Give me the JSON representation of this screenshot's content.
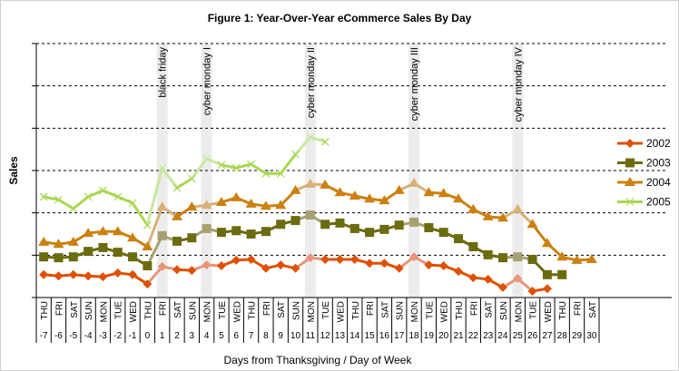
{
  "chart_data": {
    "type": "line",
    "title": "Figure 1: Year-Over-Year eCommerce Sales By Day",
    "xlabel": "Days from Thanksgiving / Day of Week",
    "ylabel": "Sales",
    "ylim": [
      0,
      6
    ],
    "grid": true,
    "legend_position": "right",
    "x": [
      -7,
      -6,
      -5,
      -4,
      -3,
      -2,
      -1,
      0,
      1,
      2,
      3,
      4,
      5,
      6,
      7,
      8,
      9,
      10,
      11,
      12,
      13,
      14,
      15,
      16,
      17,
      18,
      19,
      20,
      21,
      22,
      23,
      24,
      25,
      26,
      27,
      28,
      29,
      30
    ],
    "day_of_week": [
      "THU",
      "FRI",
      "SAT",
      "SUN",
      "MON",
      "TUE",
      "WED",
      "THU",
      "FRI",
      "SAT",
      "SUN",
      "MON",
      "TUE",
      "WED",
      "THU",
      "FRI",
      "SAT",
      "SUN",
      "MON",
      "TUE",
      "WED",
      "THU",
      "FRI",
      "SAT",
      "SUN",
      "MON",
      "TUE",
      "WED",
      "THU",
      "FRI",
      "SAT",
      "SUN",
      "MON",
      "TUE",
      "WED",
      "THU",
      "FRI",
      "SAT"
    ],
    "annotations": [
      {
        "x": 1,
        "label": "black friday"
      },
      {
        "x": 4,
        "label": "cyber monday I"
      },
      {
        "x": 11,
        "label": "cyber monday II"
      },
      {
        "x": 18,
        "label": "cyber monday III"
      },
      {
        "x": 25,
        "label": "cyber monday IV"
      }
    ],
    "series": [
      {
        "name": "2002",
        "color": "#E05000",
        "highlight": "#E8957A",
        "marker": "diamond",
        "values": [
          0.54,
          0.51,
          0.54,
          0.51,
          0.49,
          0.58,
          0.54,
          0.32,
          0.73,
          0.66,
          0.64,
          0.77,
          0.75,
          0.88,
          0.9,
          0.69,
          0.77,
          0.69,
          0.94,
          0.9,
          0.9,
          0.9,
          0.81,
          0.81,
          0.69,
          0.96,
          0.77,
          0.75,
          0.62,
          0.47,
          0.43,
          0.24,
          0.45,
          0.15,
          0.21,
          null,
          null,
          null
        ]
      },
      {
        "name": "2003",
        "color": "#6B6B10",
        "highlight": "#A8A070",
        "marker": "square",
        "values": [
          0.96,
          0.94,
          0.96,
          1.09,
          1.18,
          1.07,
          0.96,
          0.75,
          1.46,
          1.33,
          1.41,
          1.63,
          1.54,
          1.58,
          1.5,
          1.56,
          1.73,
          1.82,
          1.95,
          1.73,
          1.76,
          1.63,
          1.54,
          1.61,
          1.71,
          1.78,
          1.65,
          1.54,
          1.39,
          1.2,
          1.01,
          0.94,
          0.96,
          0.9,
          0.54,
          0.54,
          null,
          null
        ]
      },
      {
        "name": "2004",
        "color": "#CC8010",
        "highlight": "#D8B078",
        "marker": "triangle",
        "values": [
          1.31,
          1.26,
          1.31,
          1.52,
          1.56,
          1.56,
          1.41,
          1.2,
          2.14,
          1.91,
          2.14,
          2.18,
          2.25,
          2.36,
          2.21,
          2.16,
          2.18,
          2.53,
          2.68,
          2.66,
          2.48,
          2.4,
          2.33,
          2.29,
          2.53,
          2.7,
          2.48,
          2.46,
          2.33,
          2.08,
          1.91,
          1.88,
          2.08,
          1.73,
          1.28,
          0.96,
          0.88,
          0.9
        ]
      },
      {
        "name": "2005",
        "color": "#A8D850",
        "highlight": "#C8E8A0",
        "marker": "x",
        "values": [
          2.38,
          2.31,
          2.1,
          2.38,
          2.53,
          2.38,
          2.23,
          1.71,
          3.06,
          2.59,
          2.81,
          3.28,
          3.13,
          3.06,
          3.15,
          2.93,
          2.93,
          3.38,
          3.79,
          3.68,
          null,
          null,
          null,
          null,
          null,
          null,
          null,
          null,
          null,
          null,
          null,
          null,
          null,
          null,
          null,
          null,
          null,
          null
        ]
      }
    ]
  }
}
